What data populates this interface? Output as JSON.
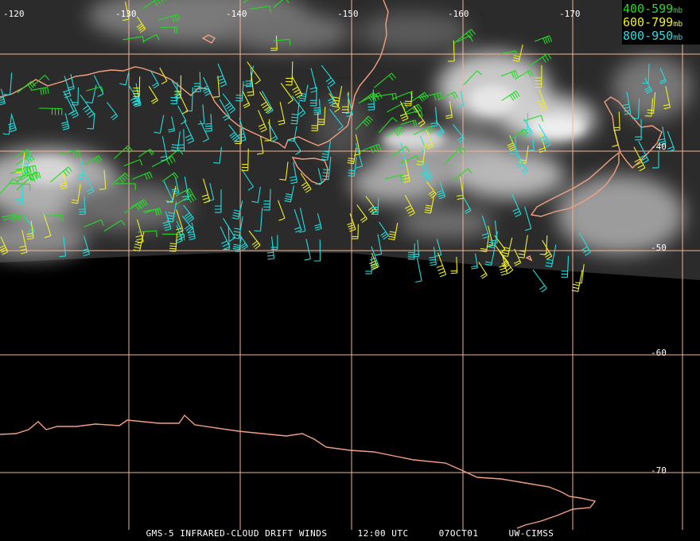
{
  "lon_labels": [
    "-120",
    "-130",
    "-140",
    "-150",
    "-160",
    "-170"
  ],
  "lat_labels": [
    "-40",
    "-50",
    "-60",
    "-70"
  ],
  "legend": [
    {
      "range": "400-599",
      "unit": "mb",
      "color": "#22dd22"
    },
    {
      "range": "600-799",
      "unit": "mb",
      "color": "#f0f020"
    },
    {
      "range": "800-950",
      "unit": "mb",
      "color": "#20e0e0"
    }
  ],
  "footer": {
    "product": "GMS-5 INFRARED-CLOUD DRIFT WINDS",
    "time": "12:00 UTC",
    "date": "07OCT01",
    "source": "UW-CIMSS"
  },
  "colors": {
    "grid": "#f4b494",
    "coast": "#f4a080",
    "background": "#000000"
  }
}
